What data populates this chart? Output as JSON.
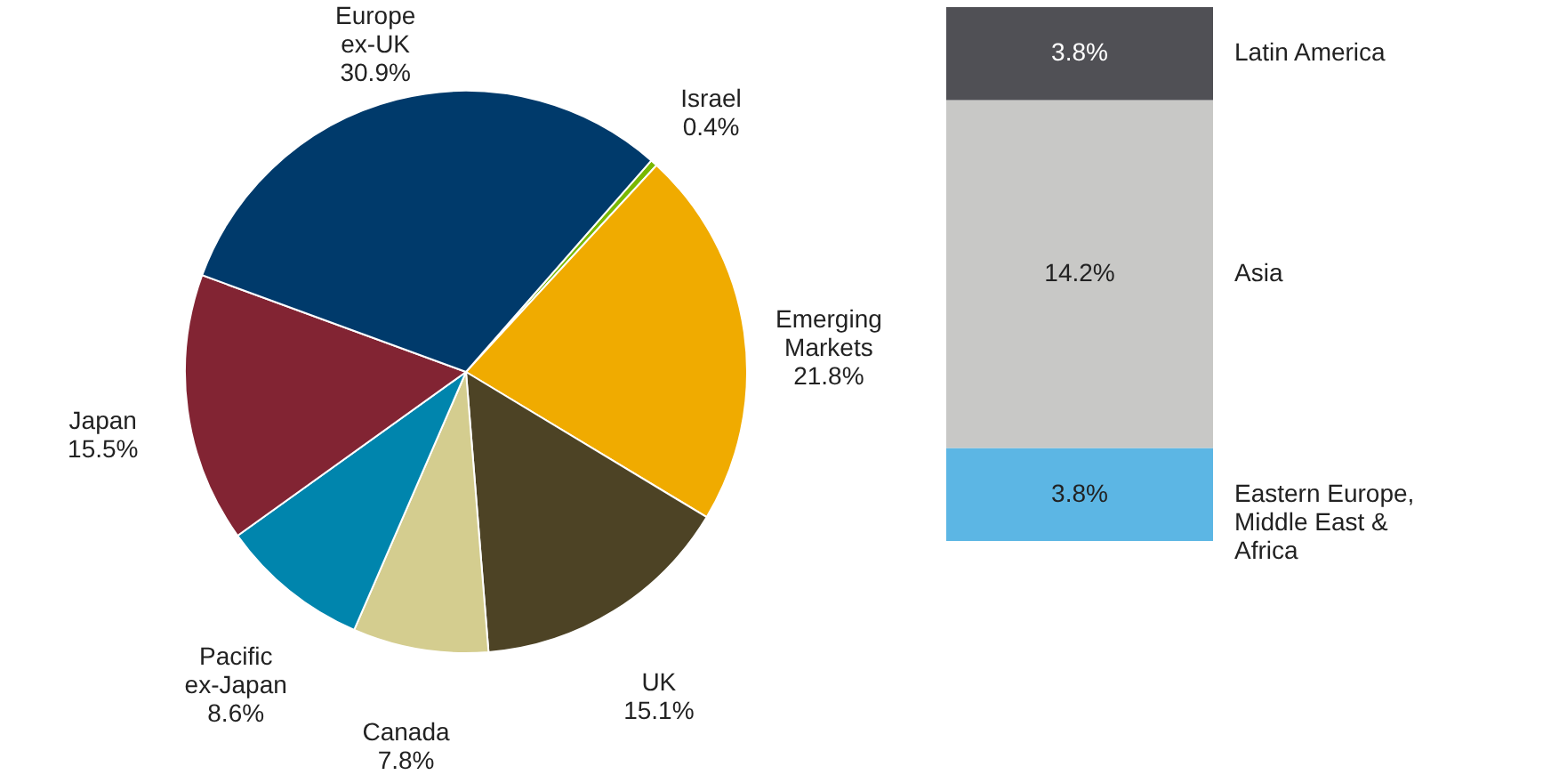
{
  "chart_data": [
    {
      "type": "pie",
      "categories": [
        "Israel",
        "Emerging Markets",
        "UK",
        "Canada",
        "Pacific ex-Japan",
        "Japan",
        "Europe ex-UK"
      ],
      "values": [
        0.4,
        21.8,
        15.1,
        7.8,
        8.6,
        15.5,
        30.9
      ],
      "colors": [
        "#7ab800",
        "#f0ab00",
        "#4d4325",
        "#d4cd8f",
        "#0085ad",
        "#822433",
        "#003a6b"
      ],
      "value_labels": [
        "0.4%",
        "21.8%",
        "15.1%",
        "7.8%",
        "8.6%",
        "15.5%",
        "30.9%"
      ]
    },
    {
      "type": "bar",
      "stacked": true,
      "categories": [
        null
      ],
      "series": [
        {
          "name": "Eastern Europe, Middle East & Africa",
          "color": "#5cb6e4",
          "values": [
            3.8
          ],
          "value_labels": [
            "3.8%"
          ]
        },
        {
          "name": "Asia",
          "color": "#c8c8c6",
          "values": [
            14.2
          ],
          "value_labels": [
            "14.2%"
          ]
        },
        {
          "name": "Latin America",
          "color": "#505055",
          "values": [
            3.8
          ],
          "value_labels": [
            "3.8%"
          ]
        }
      ]
    }
  ]
}
